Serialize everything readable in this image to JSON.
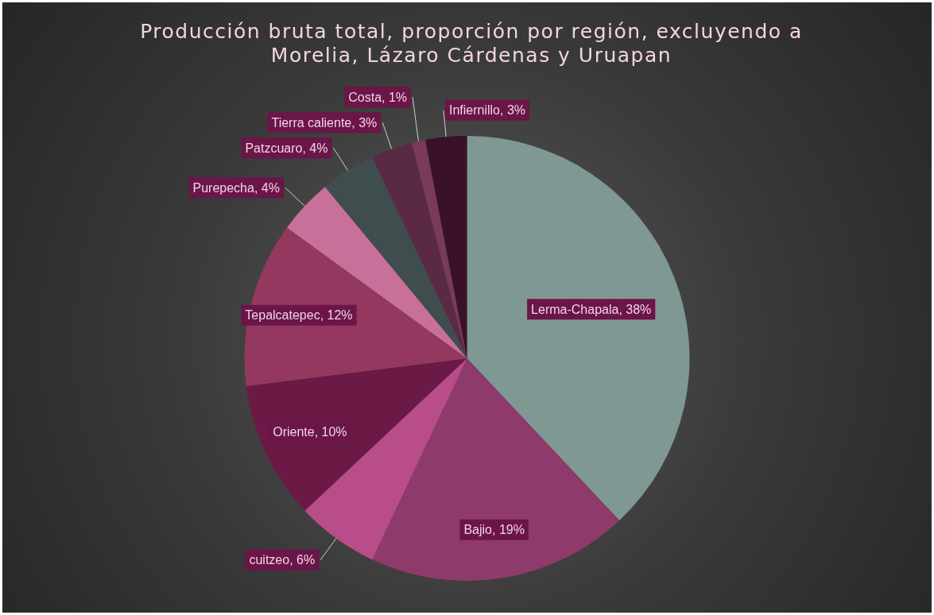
{
  "chart_data": {
    "type": "pie",
    "title": "Producción bruta total, proporción por región, excluyendo a Morelia, Lázaro Cárdenas y Uruapan",
    "categories": [
      "Lerma-Chapala",
      "Bajio",
      "cuitzeo",
      "Oriente",
      "Tepalcatepec",
      "Purepecha",
      "Patzcuaro",
      "Tierra caliente",
      "Costa",
      "Infiernillo"
    ],
    "values": [
      38,
      19,
      6,
      10,
      12,
      4,
      4,
      3,
      1,
      3
    ],
    "value_labels": [
      "38%",
      "19%",
      "6%",
      "10%",
      "12%",
      "4%",
      "4%",
      "3%",
      "1%",
      "3%"
    ],
    "colors": [
      "#7f9894",
      "#8e3a6a",
      "#b84d8a",
      "#6a1a45",
      "#94385f",
      "#c8709a",
      "#3f4d4e",
      "#5a2a45",
      "#7a3a5a",
      "#3a1228"
    ],
    "legend": false
  }
}
